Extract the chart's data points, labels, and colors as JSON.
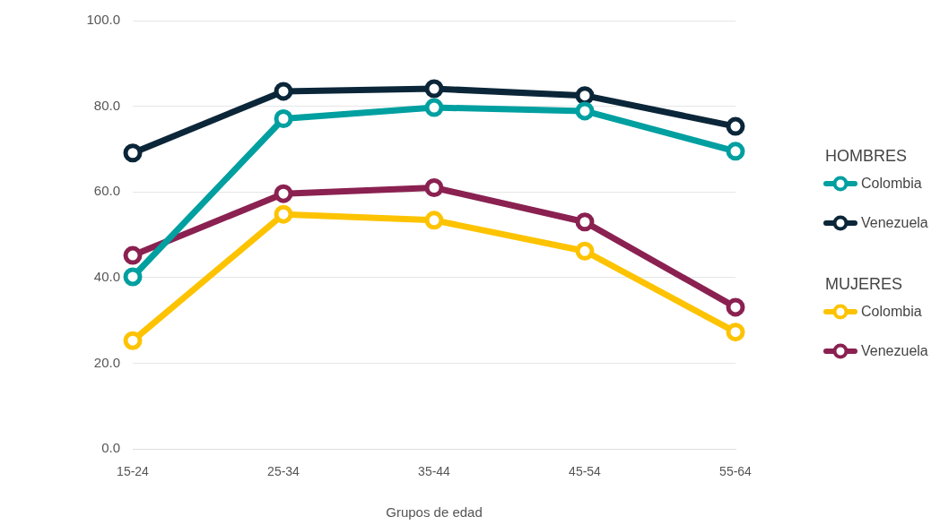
{
  "chart_data": {
    "type": "line",
    "xlabel": "Grupos de edad",
    "categories": [
      "15-24",
      "25-34",
      "35-44",
      "45-54",
      "55-64"
    ],
    "series": [
      {
        "name": "Colombia",
        "color": "#009fa0",
        "values": [
          40.2,
          77.1,
          79.7,
          78.9,
          69.5
        ]
      },
      {
        "name": "Venezuela",
        "color": "#0b2639",
        "values": [
          69.1,
          83.5,
          84.1,
          82.5,
          75.3
        ]
      },
      {
        "name": "Colombia",
        "color": "#fdc300",
        "values": [
          25.3,
          54.8,
          53.4,
          46.2,
          27.3
        ]
      },
      {
        "name": "Venezuela",
        "color": "#8a2151",
        "values": [
          45.2,
          59.6,
          61.0,
          53.0,
          33.1
        ]
      }
    ],
    "annotations": [
      "HOMBRES",
      "MUJERES"
    ],
    "ylim": [
      0,
      100
    ],
    "yticks": [
      {
        "value": 0,
        "label": "0.0"
      },
      {
        "value": 20,
        "label": "20.0"
      },
      {
        "value": 40,
        "label": "40.0"
      },
      {
        "value": 60,
        "label": "60.0"
      },
      {
        "value": 80,
        "label": "80.0"
      },
      {
        "value": 100,
        "label": "100.0"
      }
    ],
    "grid": "y",
    "legend": "right",
    "marker": "circle",
    "line_style": "solid"
  }
}
